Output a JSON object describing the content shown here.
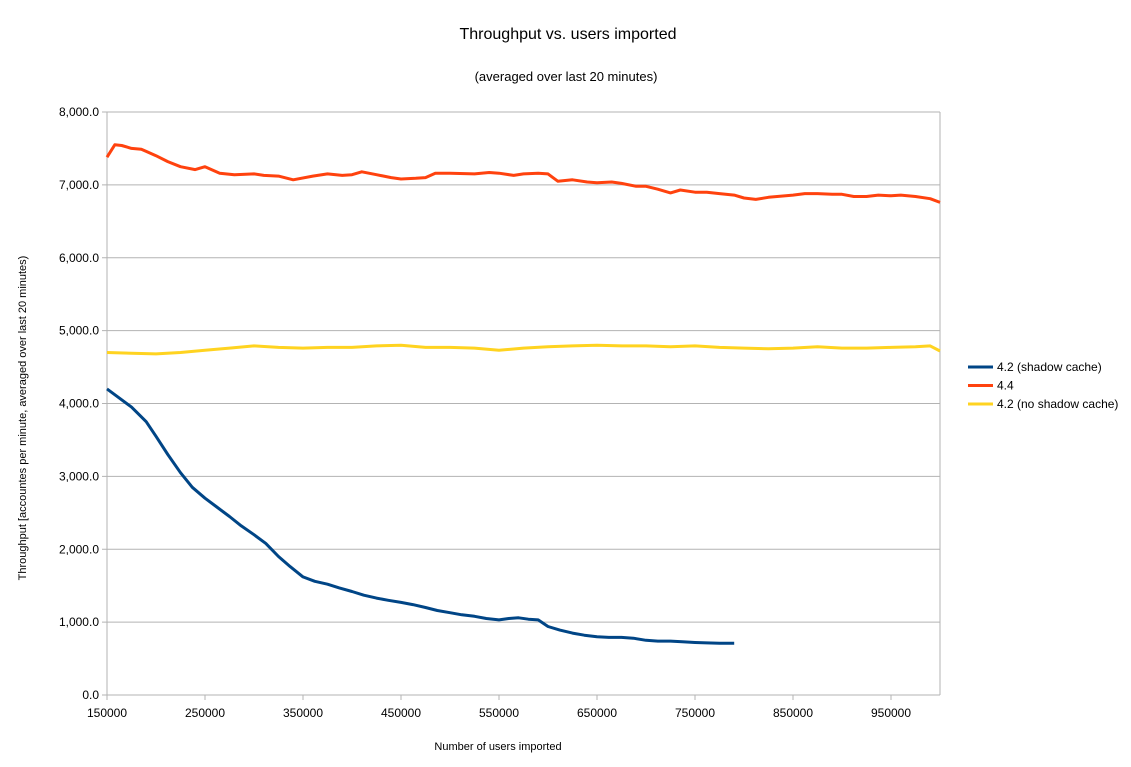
{
  "chart_data": {
    "type": "line",
    "title": "Throughput vs. users imported",
    "subtitle": "(averaged over last 20 minutes)",
    "xlabel": "Number of users imported",
    "ylabel": "Throughput [accountes per minute, averaged over last 20 minutes)",
    "xlim": [
      150000,
      1000000
    ],
    "ylim": [
      0,
      8000
    ],
    "x_ticks": [
      "150000",
      "250000",
      "350000",
      "450000",
      "550000",
      "650000",
      "750000",
      "850000",
      "950000"
    ],
    "y_ticks": [
      "0.0",
      "1,000.0",
      "2,000.0",
      "3,000.0",
      "4,000.0",
      "5,000.0",
      "6,000.0",
      "7,000.0",
      "8,000.0"
    ],
    "grid": "horizontal",
    "legend_position": "right",
    "series": [
      {
        "name": "4.2 (shadow cache)",
        "color": "#004586",
        "points": [
          [
            150000,
            4200
          ],
          [
            160000,
            4100
          ],
          [
            175000,
            3950
          ],
          [
            190000,
            3750
          ],
          [
            200000,
            3550
          ],
          [
            212000,
            3300
          ],
          [
            225000,
            3050
          ],
          [
            237000,
            2850
          ],
          [
            250000,
            2700
          ],
          [
            262000,
            2580
          ],
          [
            275000,
            2450
          ],
          [
            287000,
            2320
          ],
          [
            300000,
            2200
          ],
          [
            312000,
            2080
          ],
          [
            325000,
            1900
          ],
          [
            337000,
            1760
          ],
          [
            350000,
            1620
          ],
          [
            362000,
            1560
          ],
          [
            375000,
            1520
          ],
          [
            387000,
            1470
          ],
          [
            400000,
            1420
          ],
          [
            412000,
            1370
          ],
          [
            425000,
            1330
          ],
          [
            437000,
            1300
          ],
          [
            450000,
            1270
          ],
          [
            462000,
            1240
          ],
          [
            475000,
            1200
          ],
          [
            487000,
            1160
          ],
          [
            500000,
            1130
          ],
          [
            512000,
            1100
          ],
          [
            525000,
            1080
          ],
          [
            537000,
            1050
          ],
          [
            550000,
            1030
          ],
          [
            560000,
            1050
          ],
          [
            570000,
            1060
          ],
          [
            580000,
            1040
          ],
          [
            590000,
            1030
          ],
          [
            600000,
            940
          ],
          [
            612000,
            890
          ],
          [
            625000,
            850
          ],
          [
            637000,
            820
          ],
          [
            650000,
            800
          ],
          [
            662000,
            790
          ],
          [
            675000,
            790
          ],
          [
            687000,
            780
          ],
          [
            700000,
            750
          ],
          [
            712000,
            740
          ],
          [
            725000,
            740
          ],
          [
            737000,
            730
          ],
          [
            750000,
            720
          ],
          [
            762000,
            715
          ],
          [
            775000,
            710
          ],
          [
            790000,
            710
          ]
        ]
      },
      {
        "name": "4.4",
        "color": "#ff420e",
        "points": [
          [
            150000,
            7380
          ],
          [
            158000,
            7550
          ],
          [
            165000,
            7540
          ],
          [
            175000,
            7500
          ],
          [
            185000,
            7490
          ],
          [
            190000,
            7460
          ],
          [
            200000,
            7400
          ],
          [
            212000,
            7320
          ],
          [
            225000,
            7250
          ],
          [
            240000,
            7210
          ],
          [
            250000,
            7250
          ],
          [
            265000,
            7160
          ],
          [
            280000,
            7140
          ],
          [
            300000,
            7150
          ],
          [
            310000,
            7130
          ],
          [
            325000,
            7120
          ],
          [
            340000,
            7070
          ],
          [
            360000,
            7120
          ],
          [
            375000,
            7150
          ],
          [
            390000,
            7130
          ],
          [
            400000,
            7140
          ],
          [
            410000,
            7180
          ],
          [
            425000,
            7140
          ],
          [
            440000,
            7100
          ],
          [
            450000,
            7080
          ],
          [
            465000,
            7090
          ],
          [
            475000,
            7100
          ],
          [
            485000,
            7160
          ],
          [
            500000,
            7160
          ],
          [
            525000,
            7150
          ],
          [
            540000,
            7170
          ],
          [
            550000,
            7160
          ],
          [
            565000,
            7130
          ],
          [
            575000,
            7150
          ],
          [
            590000,
            7160
          ],
          [
            600000,
            7150
          ],
          [
            610000,
            7050
          ],
          [
            625000,
            7070
          ],
          [
            640000,
            7040
          ],
          [
            650000,
            7030
          ],
          [
            665000,
            7040
          ],
          [
            675000,
            7020
          ],
          [
            690000,
            6980
          ],
          [
            700000,
            6980
          ],
          [
            712000,
            6940
          ],
          [
            725000,
            6890
          ],
          [
            735000,
            6930
          ],
          [
            750000,
            6900
          ],
          [
            762000,
            6900
          ],
          [
            775000,
            6880
          ],
          [
            790000,
            6860
          ],
          [
            800000,
            6820
          ],
          [
            812000,
            6800
          ],
          [
            825000,
            6830
          ],
          [
            850000,
            6860
          ],
          [
            862000,
            6880
          ],
          [
            875000,
            6880
          ],
          [
            890000,
            6870
          ],
          [
            900000,
            6870
          ],
          [
            912000,
            6840
          ],
          [
            925000,
            6840
          ],
          [
            937000,
            6860
          ],
          [
            950000,
            6850
          ],
          [
            960000,
            6860
          ],
          [
            975000,
            6840
          ],
          [
            990000,
            6810
          ],
          [
            1000000,
            6760
          ]
        ]
      },
      {
        "name": "4.2 (no shadow cache)",
        "color": "#ffd320",
        "points": [
          [
            150000,
            4700
          ],
          [
            175000,
            4690
          ],
          [
            200000,
            4680
          ],
          [
            225000,
            4700
          ],
          [
            250000,
            4730
          ],
          [
            275000,
            4760
          ],
          [
            300000,
            4790
          ],
          [
            325000,
            4770
          ],
          [
            350000,
            4760
          ],
          [
            375000,
            4770
          ],
          [
            400000,
            4770
          ],
          [
            425000,
            4790
          ],
          [
            450000,
            4800
          ],
          [
            475000,
            4770
          ],
          [
            500000,
            4770
          ],
          [
            525000,
            4760
          ],
          [
            550000,
            4730
          ],
          [
            575000,
            4760
          ],
          [
            600000,
            4780
          ],
          [
            625000,
            4790
          ],
          [
            650000,
            4800
          ],
          [
            675000,
            4790
          ],
          [
            700000,
            4790
          ],
          [
            725000,
            4780
          ],
          [
            750000,
            4790
          ],
          [
            775000,
            4770
          ],
          [
            800000,
            4760
          ],
          [
            825000,
            4750
          ],
          [
            850000,
            4760
          ],
          [
            875000,
            4780
          ],
          [
            900000,
            4760
          ],
          [
            925000,
            4760
          ],
          [
            950000,
            4770
          ],
          [
            975000,
            4780
          ],
          [
            990000,
            4790
          ],
          [
            1000000,
            4720
          ]
        ]
      }
    ]
  }
}
